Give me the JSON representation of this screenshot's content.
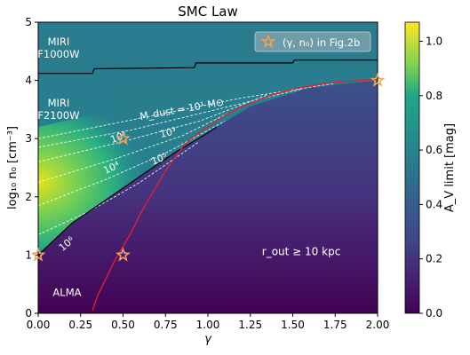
{
  "chart_data": {
    "type": "heatmap",
    "title": "SMC Law",
    "xlabel": "γ",
    "ylabel": "log₁₀ n₀ [cm⁻³]",
    "xlim": [
      0.0,
      2.0
    ],
    "ylim": [
      0,
      5
    ],
    "x_ticks": [
      "0.00",
      "0.25",
      "0.50",
      "0.75",
      "1.00",
      "1.25",
      "1.50",
      "1.75",
      "2.00"
    ],
    "y_ticks": [
      "0",
      "1",
      "2",
      "3",
      "4",
      "5"
    ],
    "colorbar": {
      "label": "A_V limit [mag]",
      "range": [
        0.0,
        1.07
      ],
      "ticks": [
        "0.0",
        "0.2",
        "0.4",
        "0.6",
        "0.8",
        "1.0"
      ],
      "colormap": "viridis"
    },
    "regions": [
      {
        "label_lines": [
          "MIRI",
          "F1000W"
        ],
        "x": 0.12,
        "y": 4.6
      },
      {
        "label_lines": [
          "MIRI",
          "F2100W"
        ],
        "x": 0.12,
        "y": 3.55
      },
      {
        "label_lines": [
          "ALMA"
        ],
        "x": 0.17,
        "y": 0.3
      }
    ],
    "annotation": {
      "text": "r_out ≥ 10 kpc",
      "x": 1.55,
      "y": 1.0
    },
    "dust_mass_contours": [
      {
        "label": "M_dust = 10¹ M⊙",
        "label_x": 0.85,
        "label_y": 3.45,
        "angle": -10
      },
      {
        "label": "10²",
        "label_x": 0.48,
        "label_y": 2.97,
        "angle": -20
      },
      {
        "label": "10³",
        "label_x": 0.77,
        "label_y": 3.05,
        "angle": -14
      },
      {
        "label": "10⁴",
        "label_x": 0.44,
        "label_y": 2.45,
        "angle": -25
      },
      {
        "label": "10⁵",
        "label_x": 0.72,
        "label_y": 2.6,
        "angle": -22
      },
      {
        "label": "10⁶",
        "label_x": 0.18,
        "label_y": 1.15,
        "angle": -40
      }
    ],
    "miri_f1000w_boundary": {
      "x": [
        0.0,
        0.32,
        0.33,
        0.92,
        0.93,
        1.5,
        1.51,
        2.0
      ],
      "y": [
        4.12,
        4.12,
        4.2,
        4.22,
        4.3,
        4.3,
        4.35,
        4.35
      ]
    },
    "miri_f2100w_boundary": {
      "x": [
        0.0,
        0.2,
        0.4,
        0.6,
        0.8,
        1.0,
        1.05
      ],
      "y": [
        1.0,
        1.55,
        1.95,
        2.35,
        2.75,
        3.1,
        3.2
      ]
    },
    "rout_boundary": {
      "x": [
        0.32,
        0.35,
        0.4,
        0.45,
        0.5,
        0.55,
        0.6,
        0.65,
        0.7,
        0.75,
        0.8,
        0.85,
        0.9,
        0.95,
        1.0,
        1.05,
        1.1,
        1.2,
        1.3,
        1.4,
        1.5,
        1.6,
        1.7,
        1.8,
        1.9,
        2.0
      ],
      "y": [
        0.05,
        0.3,
        0.6,
        0.9,
        1.15,
        1.4,
        1.7,
        1.95,
        2.2,
        2.45,
        2.65,
        2.85,
        3.0,
        3.1,
        3.2,
        3.3,
        3.4,
        3.55,
        3.67,
        3.77,
        3.85,
        3.9,
        3.95,
        3.98,
        4.0,
        4.02
      ]
    },
    "stars": {
      "legend_label": "(γ, n₀) in Fig.2b",
      "legend_position": "top-right",
      "x": [
        0.0,
        0.5,
        0.5,
        2.0
      ],
      "y": [
        1.0,
        1.0,
        3.0,
        4.0
      ]
    }
  }
}
